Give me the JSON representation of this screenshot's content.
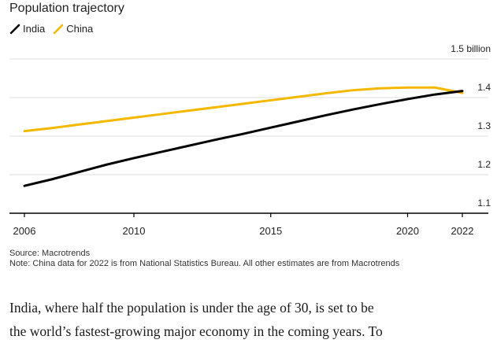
{
  "chart": {
    "title": "Population trajectory",
    "unit_label": "1.5 billion",
    "source": "Source: Macrotrends",
    "note": "Note: China data for 2022 is from National Statistics Bureau. All other estimates are from Macrotrends"
  },
  "article": {
    "line1": "India, where half the population is under the age of 30, is set to be",
    "line2": "the world’s fastest-growing major economy in the coming years. To"
  },
  "colors": {
    "india": "#000000",
    "china": "#f5b800",
    "grid": "#dcdcdc",
    "axis": "#000000"
  },
  "chart_data": {
    "type": "line",
    "title": "Population trajectory",
    "unit": "billion",
    "x": [
      2006,
      2007,
      2008,
      2009,
      2010,
      2011,
      2012,
      2013,
      2014,
      2015,
      2016,
      2017,
      2018,
      2019,
      2020,
      2021,
      2022
    ],
    "series": [
      {
        "name": "India",
        "color": "#000000",
        "values": [
          1.171,
          1.188,
          1.207,
          1.226,
          1.243,
          1.259,
          1.275,
          1.291,
          1.306,
          1.322,
          1.338,
          1.354,
          1.369,
          1.383,
          1.396,
          1.408,
          1.417
        ]
      },
      {
        "name": "China",
        "color": "#f5b800",
        "values": [
          1.313,
          1.321,
          1.33,
          1.339,
          1.348,
          1.357,
          1.366,
          1.375,
          1.384,
          1.393,
          1.402,
          1.411,
          1.419,
          1.424,
          1.426,
          1.426,
          1.412
        ]
      }
    ],
    "xticks": [
      2006,
      2010,
      2015,
      2020,
      2022
    ],
    "yticks": [
      {
        "value": 1.1,
        "label": "1.1"
      },
      {
        "value": 1.2,
        "label": "1.2"
      },
      {
        "value": 1.3,
        "label": "1.3"
      },
      {
        "value": 1.4,
        "label": "1.4"
      },
      {
        "value": 1.5,
        "label": "1.5 billion"
      }
    ],
    "xlim": [
      2006,
      2022
    ],
    "ylim": [
      1.1,
      1.5
    ],
    "grid": true,
    "legend": "top-left"
  }
}
